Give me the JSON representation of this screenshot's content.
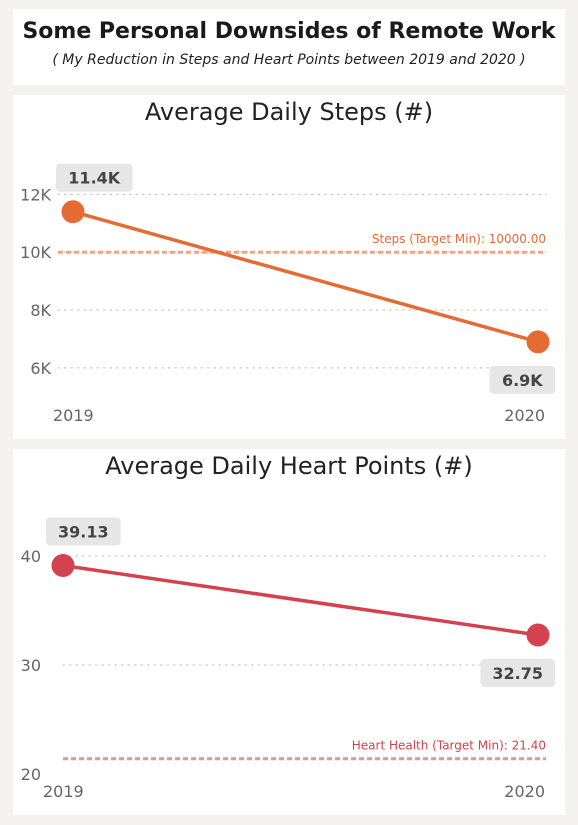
{
  "header": {
    "title": "Some Personal Downsides of Remote Work",
    "subtitle": "( My Reduction in Steps and Heart Points between 2019 and 2020 )"
  },
  "chart_data": [
    {
      "type": "line",
      "title": "Average Daily Steps (#)",
      "categories": [
        "2019",
        "2020"
      ],
      "series": [
        {
          "values": [
            11400,
            6900
          ],
          "color": "#e56b34"
        }
      ],
      "data_labels": [
        "11.4K",
        "6.9K"
      ],
      "y_ticks": [
        {
          "value": 6000,
          "label": "6K"
        },
        {
          "value": 8000,
          "label": "8K"
        },
        {
          "value": 10000,
          "label": "10K"
        },
        {
          "value": 12000,
          "label": "12K"
        }
      ],
      "reference_line": {
        "label": "Steps (Target Min): 10000.00",
        "value": 10000,
        "color": "#f0a58a",
        "label_color": "#e56b34"
      },
      "ylim": [
        5200,
        12600
      ],
      "grid": true,
      "xlabel": "",
      "ylabel": ""
    },
    {
      "type": "line",
      "title": "Average Daily Heart Points (#)",
      "categories": [
        "2019",
        "2020"
      ],
      "series": [
        {
          "values": [
            39.13,
            32.75
          ],
          "color": "#d4414f"
        }
      ],
      "data_labels": [
        "39.13",
        "32.75"
      ],
      "y_ticks": [
        {
          "value": 20,
          "label": "20"
        },
        {
          "value": 30,
          "label": "30"
        },
        {
          "value": 40,
          "label": "40"
        }
      ],
      "reference_line": {
        "label": "Heart Health (Target Min): 21.40",
        "value": 21.4,
        "color": "#ef8f98",
        "label_color": "#d4414f"
      },
      "ylim": [
        20,
        40
      ],
      "grid": true,
      "xlabel": "",
      "ylabel": ""
    }
  ]
}
